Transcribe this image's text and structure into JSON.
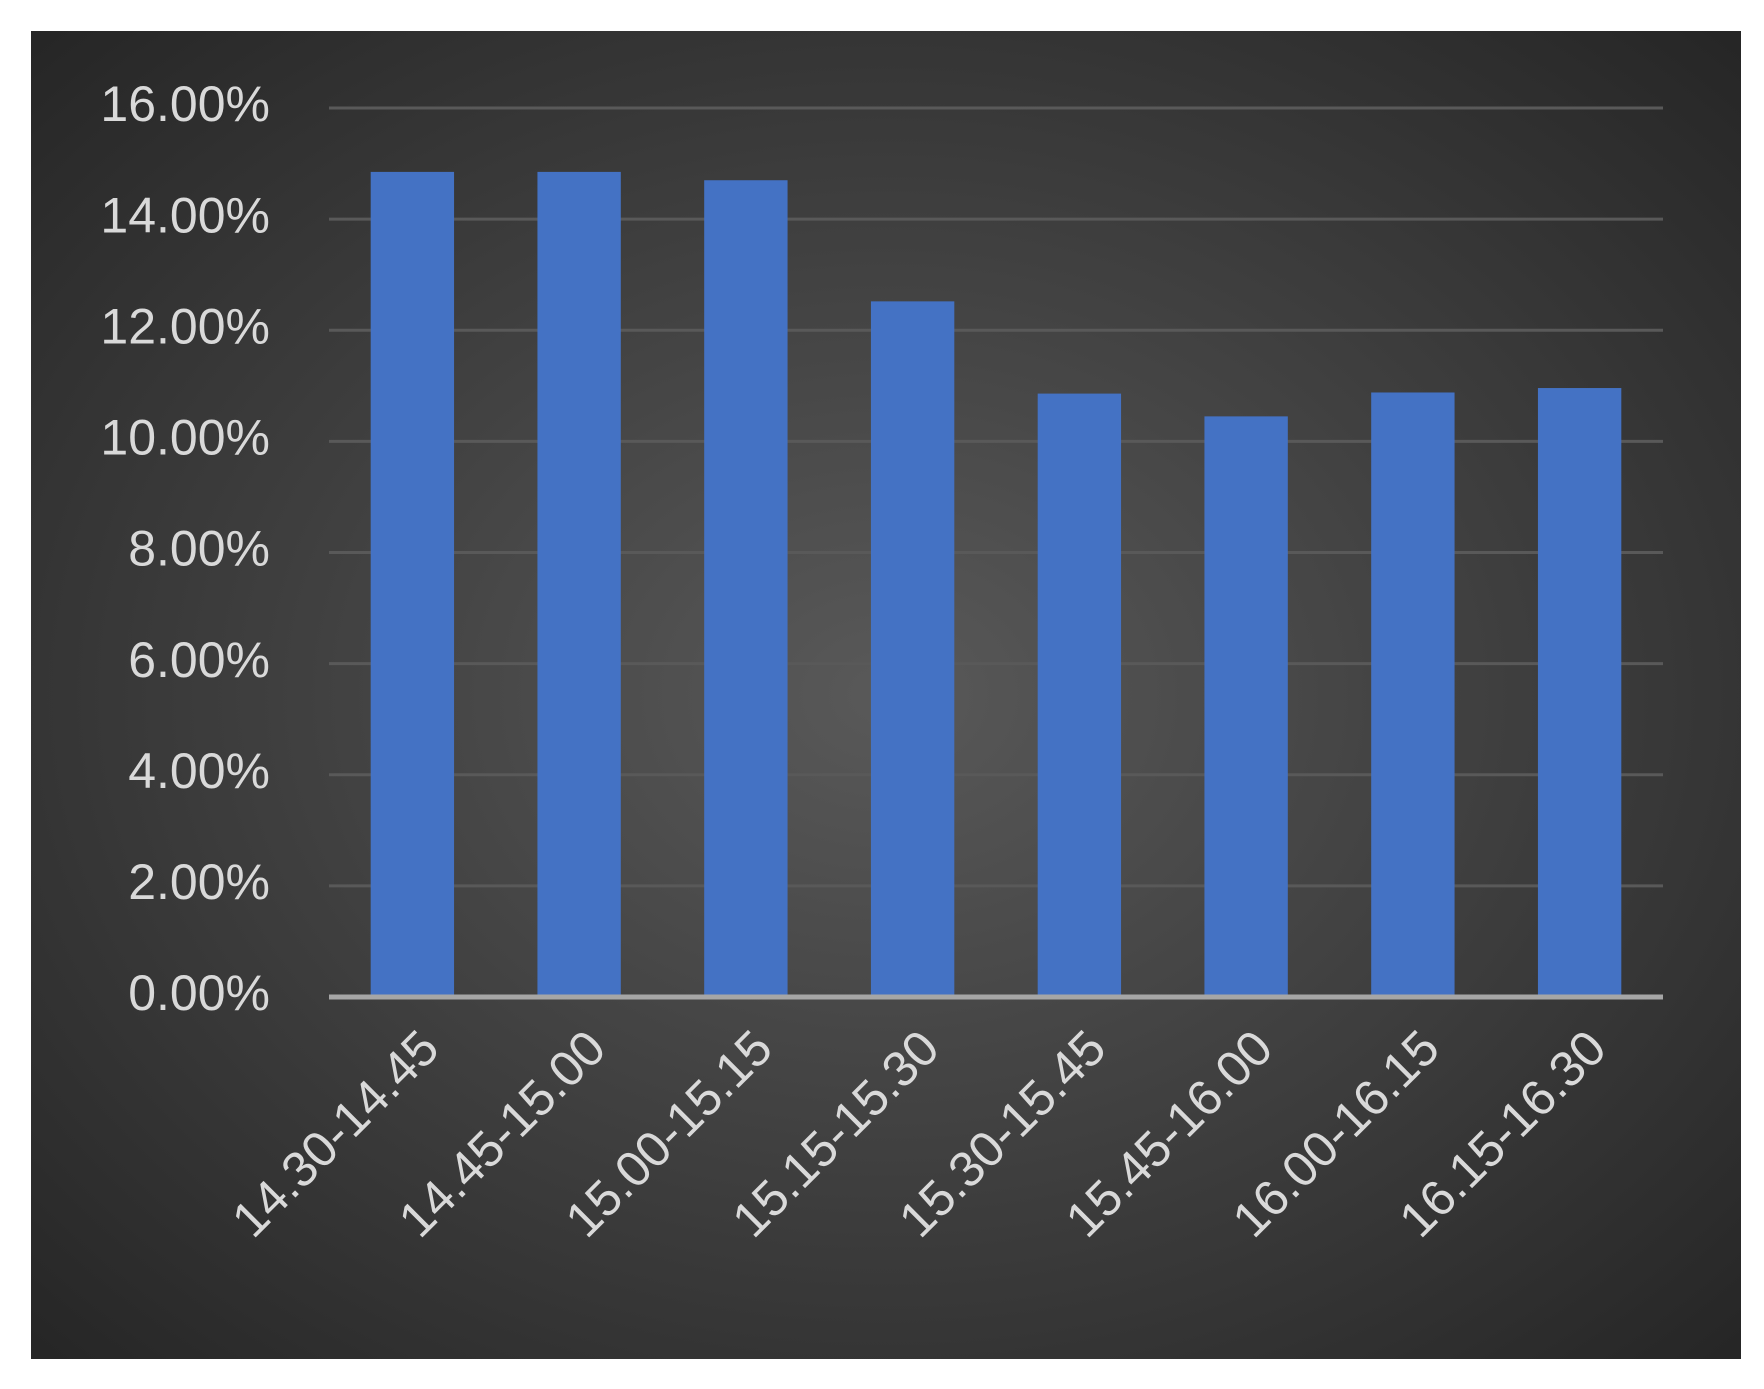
{
  "chart_data": {
    "type": "bar",
    "categories": [
      "14.30-14.45",
      "14.45-15.00",
      "15.00-15.15",
      "15.15-15.30",
      "15.30-15.45",
      "15.45-16.00",
      "16.00-16.15",
      "16.15-16.30"
    ],
    "values": [
      14.85,
      14.85,
      14.7,
      12.52,
      10.86,
      10.45,
      10.88,
      10.96
    ],
    "color": "#4472c4",
    "ylim": [
      0,
      16
    ],
    "yticks": [
      {
        "value": 0,
        "label": "0.00%"
      },
      {
        "value": 2,
        "label": "2.00%"
      },
      {
        "value": 4,
        "label": "4.00%"
      },
      {
        "value": 6,
        "label": "6.00%"
      },
      {
        "value": 8,
        "label": "8.00%"
      },
      {
        "value": 10,
        "label": "10.00%"
      },
      {
        "value": 12,
        "label": "12.00%"
      },
      {
        "value": 14,
        "label": "14.00%"
      },
      {
        "value": 16,
        "label": "16.00%"
      }
    ],
    "grid": true
  }
}
